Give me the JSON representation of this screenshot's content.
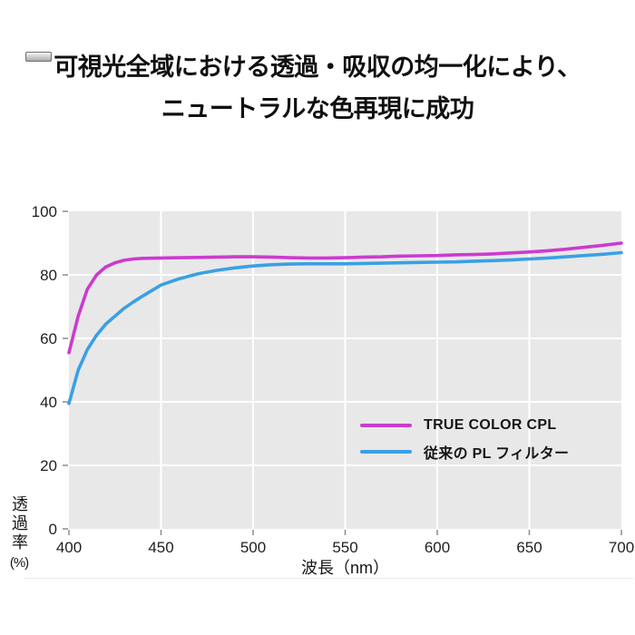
{
  "header": {
    "title_line1": "可視光全域における透過・吸収の均一化により、",
    "title_line2": "ニュートラルな色再現に成功"
  },
  "chart_data": {
    "type": "line",
    "title": "",
    "xlabel": "波長（nm）",
    "ylabel": "透過率",
    "ylabel_unit": "(%)",
    "xlim": [
      400,
      700
    ],
    "ylim": [
      0,
      100
    ],
    "x_ticks": [
      400,
      450,
      500,
      550,
      600,
      650,
      700
    ],
    "y_ticks": [
      0,
      20,
      40,
      60,
      80,
      100
    ],
    "grid": true,
    "plot_bg": "#e8e8e8",
    "grid_color": "#ffffff",
    "tick_color": "#8a8a8a",
    "legend_position": "inside-lower-right",
    "series": [
      {
        "id": "true-color-cpl",
        "name": "TRUE COLOR CPL",
        "color": "#cb3bce",
        "x": [
          400,
          405,
          410,
          415,
          420,
          425,
          430,
          435,
          440,
          450,
          460,
          470,
          480,
          490,
          500,
          510,
          520,
          530,
          540,
          550,
          560,
          570,
          580,
          590,
          600,
          610,
          620,
          630,
          640,
          650,
          660,
          670,
          680,
          690,
          700
        ],
        "values": [
          55.5,
          67,
          75.5,
          80,
          82.5,
          83.8,
          84.6,
          85,
          85.2,
          85.3,
          85.4,
          85.5,
          85.6,
          85.7,
          85.7,
          85.6,
          85.4,
          85.3,
          85.3,
          85.4,
          85.6,
          85.7,
          85.9,
          86,
          86.1,
          86.3,
          86.4,
          86.6,
          86.9,
          87.2,
          87.6,
          88.1,
          88.7,
          89.3,
          90
        ]
      },
      {
        "id": "conventional-pl",
        "name": "従来の PL フィルター",
        "color": "#39a0e5",
        "x": [
          400,
          405,
          410,
          415,
          420,
          425,
          430,
          435,
          440,
          450,
          460,
          470,
          480,
          490,
          500,
          510,
          520,
          530,
          540,
          550,
          560,
          570,
          580,
          590,
          600,
          610,
          620,
          630,
          640,
          650,
          660,
          670,
          680,
          690,
          700
        ],
        "values": [
          39.5,
          50,
          56.5,
          61,
          64.5,
          67,
          69.5,
          71.5,
          73.3,
          76.8,
          78.8,
          80.3,
          81.4,
          82.2,
          82.8,
          83.2,
          83.4,
          83.5,
          83.5,
          83.5,
          83.6,
          83.7,
          83.8,
          83.9,
          84,
          84.1,
          84.3,
          84.5,
          84.7,
          85,
          85.3,
          85.7,
          86.1,
          86.5,
          87
        ]
      }
    ]
  },
  "decorations": {
    "artifact_bar_icon": "small-gray-bar-icon",
    "divider_color": "#e9e9e9"
  }
}
